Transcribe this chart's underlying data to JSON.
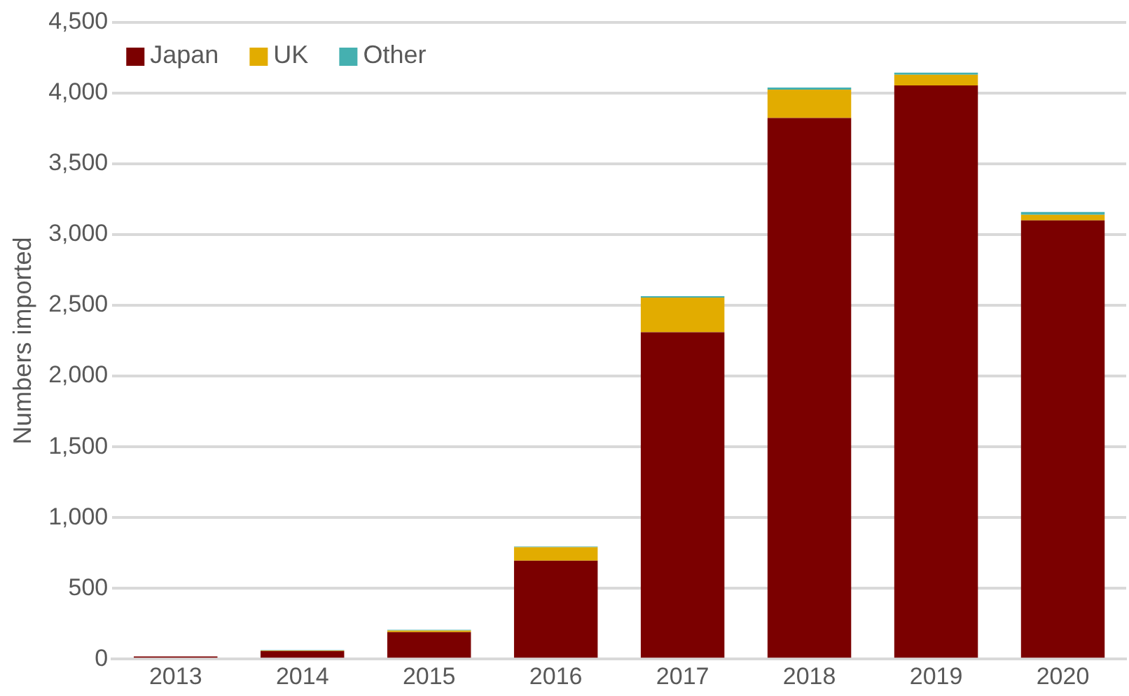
{
  "chart_data": {
    "type": "bar",
    "ylabel": "Numbers imported",
    "categories": [
      "2013",
      "2014",
      "2015",
      "2016",
      "2017",
      "2018",
      "2019",
      "2020"
    ],
    "stacked": true,
    "series": [
      {
        "name": "Japan",
        "color": "#7b0000",
        "values": [
          18,
          57,
          190,
          695,
          2310,
          3825,
          4055,
          3100
        ]
      },
      {
        "name": "UK",
        "color": "#e2ac00",
        "values": [
          0,
          4,
          12,
          95,
          245,
          200,
          75,
          40
        ]
      },
      {
        "name": "Other",
        "color": "#45b0b0",
        "values": [
          0,
          2,
          5,
          5,
          10,
          15,
          15,
          20
        ]
      }
    ],
    "ylim": [
      0,
      4500
    ],
    "yticks": [
      {
        "value": 0,
        "label": "0"
      },
      {
        "value": 500,
        "label": "500"
      },
      {
        "value": 1000,
        "label": "1,000"
      },
      {
        "value": 1500,
        "label": "1,500"
      },
      {
        "value": 2000,
        "label": "2,000"
      },
      {
        "value": 2500,
        "label": "2,500"
      },
      {
        "value": 3000,
        "label": "3,000"
      },
      {
        "value": 3500,
        "label": "3,500"
      },
      {
        "value": 4000,
        "label": "4,000"
      },
      {
        "value": 4500,
        "label": "4,500"
      }
    ],
    "grid": "y",
    "legend": "top left"
  }
}
